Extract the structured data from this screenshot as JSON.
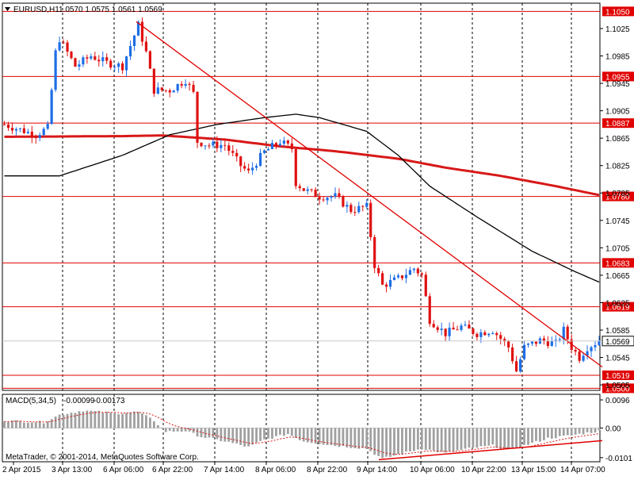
{
  "header": {
    "symbol_label": "EURUSD,H1",
    "ohlc_text": "1.0570 1.0575 1.0561 1.0569"
  },
  "footer": {
    "copyright": "MetaTrader, © 2001-2014, MetaQuotes Software Corp."
  },
  "colors": {
    "background": "#ffffff",
    "bull_candle": "#1e6ee6",
    "bear_candle": "#e01010",
    "level_line": "#e00000",
    "trendline": "#e00000",
    "slow_ma": "#d81818",
    "fast_ma": "#000000",
    "macd_hist": "#a0a0a0",
    "macd_signal": "#d81818"
  },
  "chart_data": [
    {
      "type": "candlestick",
      "timeframe": "H1",
      "symbol": "EURUSD",
      "ylim": [
        1.0497,
        1.1062
      ],
      "grid": true,
      "x_labels": [
        "2 Apr 2015",
        "3 Apr 13:00",
        "6 Apr 06:00",
        "6 Apr 22:00",
        "7 Apr 14:00",
        "8 Apr 06:00",
        "8 Apr 22:00",
        "9 Apr 14:00",
        "10 Apr 06:00",
        "10 Apr 22:00",
        "13 Apr 15:00",
        "14 Apr 07:00"
      ],
      "y_tick_labels": [
        "1.1025",
        "1.0985",
        "1.0945",
        "1.0905",
        "1.0865",
        "1.0825",
        "1.0785",
        "1.0745",
        "1.0705",
        "1.0665",
        "1.0625",
        "1.0585",
        "1.0545",
        "1.0505"
      ],
      "current_price": "1.0569",
      "horizontal_levels": [
        "1.1050",
        "1.0955",
        "1.0887",
        "1.0780",
        "1.0683",
        "1.0619",
        "1.0519",
        "1.0500"
      ],
      "trendline": {
        "from": "6 Apr 06:00 @ 1.1035",
        "to": "14 Apr 09:00 @ 1.0540"
      },
      "anchors": [
        {
          "bar": 0,
          "price": 1.0885
        },
        {
          "bar": 8,
          "price": 1.087
        },
        {
          "bar": 11,
          "price": 1.088
        },
        {
          "bar": 13,
          "price": 1.099
        },
        {
          "bar": 14,
          "price": 1.101
        },
        {
          "bar": 18,
          "price": 1.097
        },
        {
          "bar": 22,
          "price": 1.0985
        },
        {
          "bar": 26,
          "price": 1.0975
        },
        {
          "bar": 30,
          "price": 1.097
        },
        {
          "bar": 34,
          "price": 1.103
        },
        {
          "bar": 36,
          "price": 1.099
        },
        {
          "bar": 38,
          "price": 1.0935
        },
        {
          "bar": 42,
          "price": 1.0935
        },
        {
          "bar": 46,
          "price": 1.095
        },
        {
          "bar": 48,
          "price": 1.093
        },
        {
          "bar": 49,
          "price": 1.086
        },
        {
          "bar": 52,
          "price": 1.0855
        },
        {
          "bar": 56,
          "price": 1.0855
        },
        {
          "bar": 60,
          "price": 1.0825
        },
        {
          "bar": 62,
          "price": 1.0815
        },
        {
          "bar": 66,
          "price": 1.0845
        },
        {
          "bar": 70,
          "price": 1.086
        },
        {
          "bar": 73,
          "price": 1.085
        },
        {
          "bar": 74,
          "price": 1.08
        },
        {
          "bar": 76,
          "price": 1.079
        },
        {
          "bar": 80,
          "price": 1.078
        },
        {
          "bar": 84,
          "price": 1.078
        },
        {
          "bar": 88,
          "price": 1.076
        },
        {
          "bar": 92,
          "price": 1.0765
        },
        {
          "bar": 94,
          "price": 1.068
        },
        {
          "bar": 96,
          "price": 1.065
        },
        {
          "bar": 100,
          "price": 1.066
        },
        {
          "bar": 104,
          "price": 1.0675
        },
        {
          "bar": 106,
          "price": 1.0665
        },
        {
          "bar": 108,
          "price": 1.06
        },
        {
          "bar": 112,
          "price": 1.058
        },
        {
          "bar": 116,
          "price": 1.059
        },
        {
          "bar": 120,
          "price": 1.058
        },
        {
          "bar": 124,
          "price": 1.0585
        },
        {
          "bar": 128,
          "price": 1.056
        },
        {
          "bar": 130,
          "price": 1.0525
        },
        {
          "bar": 132,
          "price": 1.056
        },
        {
          "bar": 136,
          "price": 1.057
        },
        {
          "bar": 140,
          "price": 1.0565
        },
        {
          "bar": 142,
          "price": 1.0585
        },
        {
          "bar": 144,
          "price": 1.056
        },
        {
          "bar": 146,
          "price": 1.0545
        },
        {
          "bar": 148,
          "price": 1.056
        },
        {
          "bar": 151,
          "price": 1.0569
        }
      ],
      "fast_ma_points": [
        {
          "bar": 0,
          "price": 1.081
        },
        {
          "bar": 14,
          "price": 1.081
        },
        {
          "bar": 30,
          "price": 1.084
        },
        {
          "bar": 42,
          "price": 1.087
        },
        {
          "bar": 54,
          "price": 1.0885
        },
        {
          "bar": 66,
          "price": 1.0895
        },
        {
          "bar": 74,
          "price": 1.09
        },
        {
          "bar": 80,
          "price": 1.0895
        },
        {
          "bar": 92,
          "price": 1.0875
        },
        {
          "bar": 100,
          "price": 1.084
        },
        {
          "bar": 108,
          "price": 1.0795
        },
        {
          "bar": 120,
          "price": 1.075
        },
        {
          "bar": 134,
          "price": 1.07
        },
        {
          "bar": 145,
          "price": 1.067
        },
        {
          "bar": 151,
          "price": 1.0655
        }
      ],
      "slow_ma_points": [
        {
          "bar": 0,
          "price": 1.0867
        },
        {
          "bar": 30,
          "price": 1.0868
        },
        {
          "bar": 40,
          "price": 1.0869
        },
        {
          "bar": 56,
          "price": 1.0863
        },
        {
          "bar": 70,
          "price": 1.0853
        },
        {
          "bar": 84,
          "price": 1.0846
        },
        {
          "bar": 100,
          "price": 1.0835
        },
        {
          "bar": 112,
          "price": 1.0822
        },
        {
          "bar": 126,
          "price": 1.081
        },
        {
          "bar": 140,
          "price": 1.0795
        },
        {
          "bar": 151,
          "price": 1.0782
        }
      ]
    },
    {
      "type": "bar",
      "indicator": "MACD(5,34,5)",
      "macd_value": "-0.00099",
      "signal_value": "-0.00173",
      "ylim": [
        -0.0115,
        0.0115
      ],
      "y_tick_labels": [
        "0.0096",
        "0.00",
        "-0.0101"
      ],
      "anchors": [
        {
          "bar": 0,
          "value": 0.0025
        },
        {
          "bar": 10,
          "value": 0.002
        },
        {
          "bar": 14,
          "value": 0.0045
        },
        {
          "bar": 20,
          "value": 0.006
        },
        {
          "bar": 28,
          "value": 0.005
        },
        {
          "bar": 34,
          "value": 0.0055
        },
        {
          "bar": 38,
          "value": 0.0025
        },
        {
          "bar": 41,
          "value": -0.0012
        },
        {
          "bar": 46,
          "value": -0.001
        },
        {
          "bar": 50,
          "value": -0.003
        },
        {
          "bar": 56,
          "value": -0.0045
        },
        {
          "bar": 62,
          "value": -0.0065
        },
        {
          "bar": 66,
          "value": -0.004
        },
        {
          "bar": 72,
          "value": -0.002
        },
        {
          "bar": 76,
          "value": -0.0045
        },
        {
          "bar": 84,
          "value": -0.006
        },
        {
          "bar": 92,
          "value": -0.007
        },
        {
          "bar": 96,
          "value": -0.0105
        },
        {
          "bar": 100,
          "value": -0.009
        },
        {
          "bar": 106,
          "value": -0.007
        },
        {
          "bar": 112,
          "value": -0.0085
        },
        {
          "bar": 118,
          "value": -0.007
        },
        {
          "bar": 124,
          "value": -0.006
        },
        {
          "bar": 128,
          "value": -0.0075
        },
        {
          "bar": 132,
          "value": -0.006
        },
        {
          "bar": 138,
          "value": -0.0035
        },
        {
          "bar": 144,
          "value": -0.0025
        },
        {
          "bar": 151,
          "value": -0.001
        }
      ],
      "divergence_line": {
        "from": "9 Apr 14:00 @ -0.0105",
        "to": "14 Apr 09:00 @ -0.0040"
      }
    }
  ]
}
